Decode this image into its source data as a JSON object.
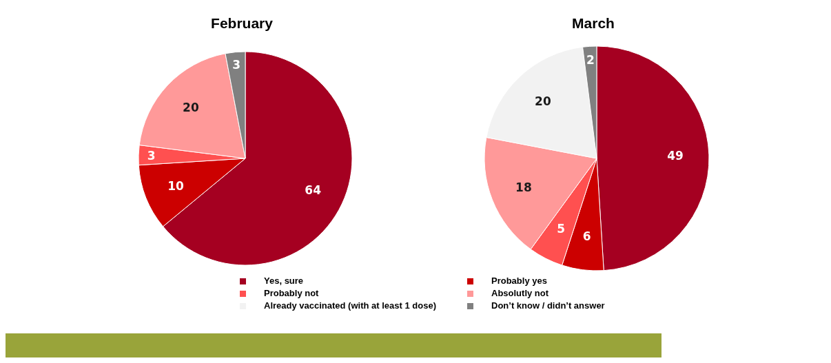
{
  "chart_data": [
    {
      "type": "pie",
      "title": "February",
      "categories": [
        "Yes, sure",
        "Probably yes",
        "Probably not",
        "Absolutly not",
        "Already vaccinated (with at least 1 dose)",
        "Don’t know / didn’t answer"
      ],
      "values": [
        64,
        10,
        3,
        20,
        0,
        3
      ],
      "colors": [
        "#a50021",
        "#cc0000",
        "#ff5050",
        "#ff9999",
        "#f2f2f2",
        "#808080"
      ],
      "data_labels": true,
      "legend": "bottom"
    },
    {
      "type": "pie",
      "title": "March",
      "categories": [
        null,
        null,
        null,
        null,
        null,
        null
      ],
      "values": [
        49,
        6,
        5,
        18,
        20,
        2
      ],
      "colors": [
        "#a50021",
        "#cc0000",
        "#ff5050",
        "#ff9999",
        "#f2f2f2",
        "#808080"
      ],
      "data_labels": true
    }
  ]
}
